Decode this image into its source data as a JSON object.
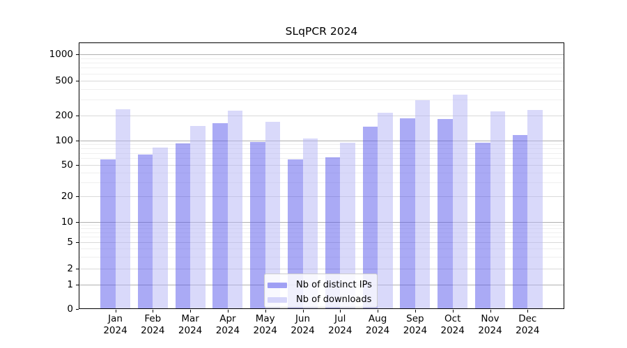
{
  "title": "SLqPCR 2024",
  "chart_data": {
    "type": "bar",
    "title": "SLqPCR 2024",
    "categories": [
      "Jan 2024",
      "Feb 2024",
      "Mar 2024",
      "Apr 2024",
      "May 2024",
      "Jun 2024",
      "Jul 2024",
      "Aug 2024",
      "Sep 2024",
      "Oct 2024",
      "Nov 2024",
      "Dec 2024"
    ],
    "series": [
      {
        "name": "Nb of distinct IPs",
        "color": "#5656ec",
        "values": [
          58,
          67,
          92,
          162,
          96,
          58,
          62,
          147,
          185,
          180,
          93,
          115
        ]
      },
      {
        "name": "Nb of downloads",
        "color": "#b4b4f5",
        "values": [
          235,
          82,
          150,
          225,
          168,
          105,
          94,
          215,
          295,
          345,
          220,
          232
        ]
      }
    ],
    "y_axis": {
      "scale": "log-like",
      "ticks": [
        0,
        1,
        2,
        5,
        10,
        20,
        50,
        100,
        200,
        500,
        1000
      ],
      "minor_ticks": [
        3,
        4,
        6,
        7,
        8,
        9,
        30,
        40,
        60,
        70,
        80,
        90,
        300,
        400,
        600,
        700,
        800,
        900
      ]
    },
    "x_axis": {
      "label_year_split": true
    },
    "grid": true,
    "legend": {
      "position": "inside-bottom-center"
    }
  }
}
